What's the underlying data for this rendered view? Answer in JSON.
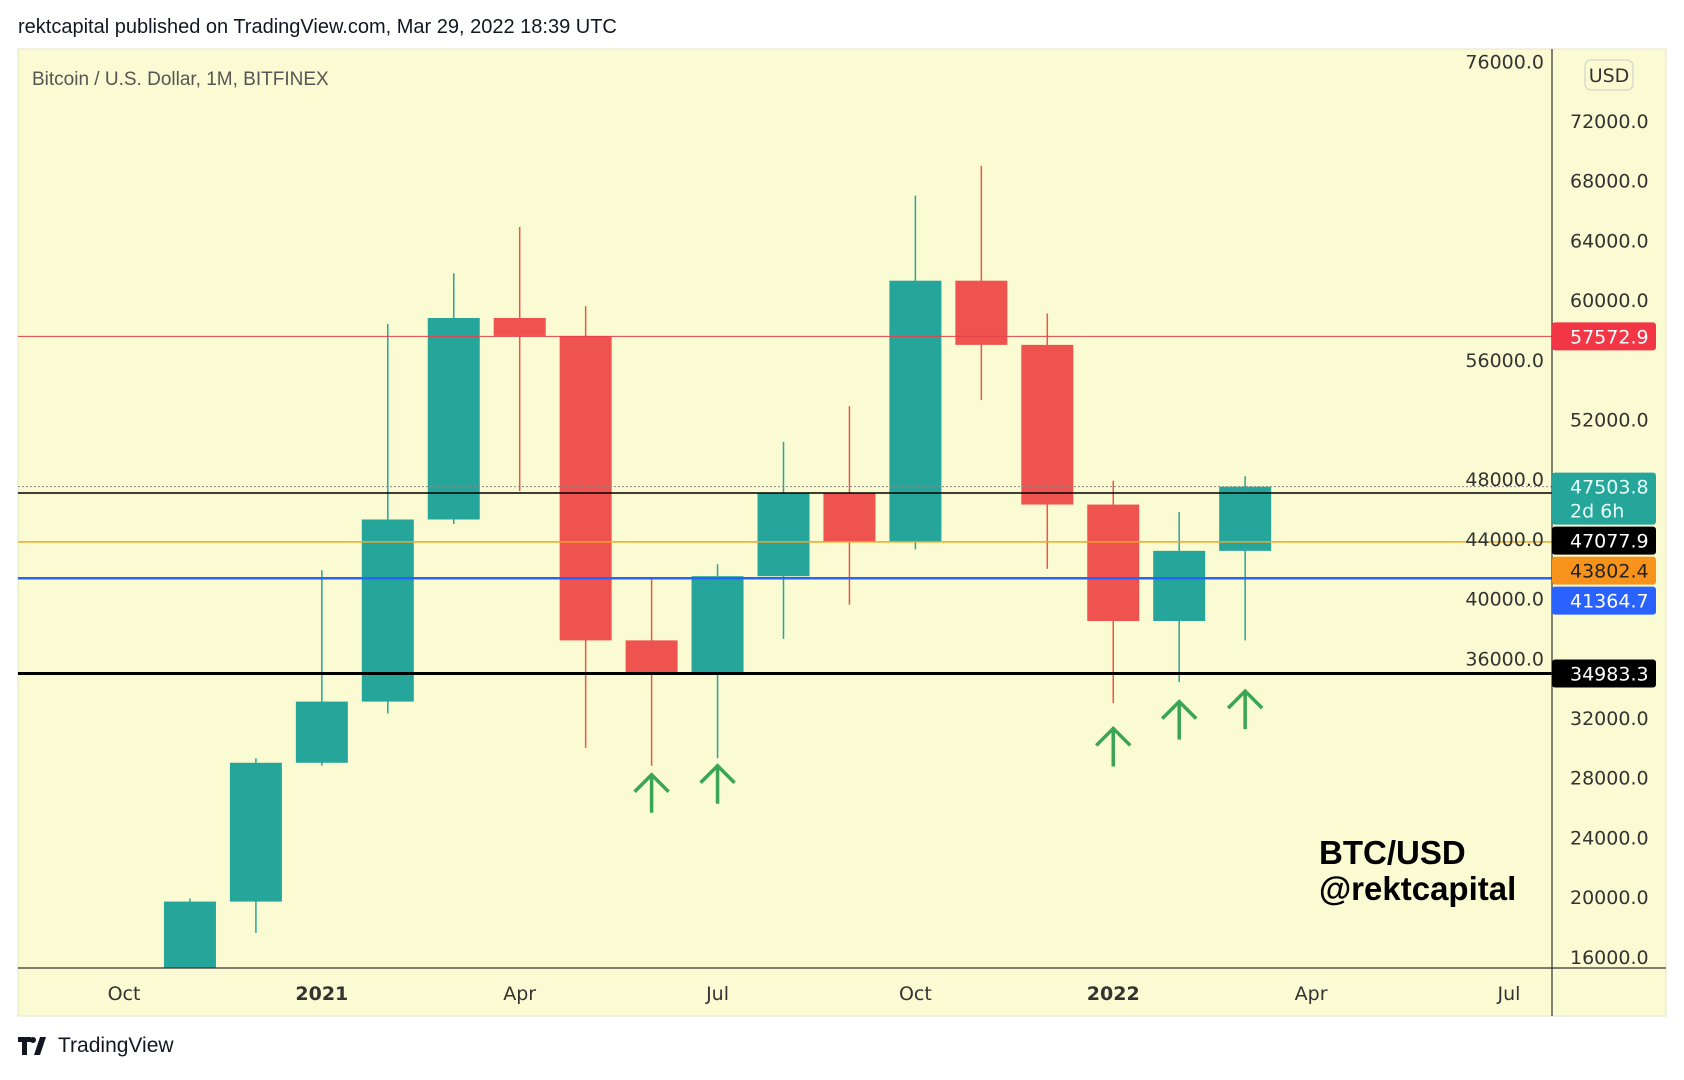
{
  "header": "rektcapital published on TradingView.com, Mar 29, 2022 18:39 UTC",
  "footer_logo": "TradingView",
  "colors": {
    "background": "#fafbd2",
    "up": "#26a69a",
    "down": "#ef5350",
    "arrow": "#3aa655"
  },
  "chart_data": {
    "type": "candlestick",
    "title": "Bitcoin / U.S. Dollar, 1M, BITFINEX",
    "currency_button": "USD",
    "watermark": [
      "BTC/USD",
      "@rektcapital"
    ],
    "ylim": [
      16000,
      76000
    ],
    "y_scale": "linear",
    "y_ticks": [
      "76000.0",
      "72000.0",
      "68000.0",
      "64000.0",
      "60000.0",
      "56000.0",
      "52000.0",
      "48000.0",
      "44000.0",
      "40000.0",
      "36000.0",
      "32000.0",
      "28000.0",
      "24000.0",
      "20000.0",
      "16000.0"
    ],
    "x_ticks": [
      {
        "label": "Oct",
        "date": "2020-10",
        "bold": false
      },
      {
        "label": "2021",
        "date": "2021-01",
        "bold": true
      },
      {
        "label": "Apr",
        "date": "2021-04",
        "bold": false
      },
      {
        "label": "Jul",
        "date": "2021-07",
        "bold": false
      },
      {
        "label": "Oct",
        "date": "2021-10",
        "bold": false
      },
      {
        "label": "2022",
        "date": "2022-01",
        "bold": true
      },
      {
        "label": "Apr",
        "date": "2022-04",
        "bold": false
      },
      {
        "label": "Jul",
        "date": "2022-07",
        "bold": false
      }
    ],
    "candles": [
      {
        "date": "2020-11",
        "o": 13800,
        "h": 19900,
        "l": 13200,
        "c": 19700
      },
      {
        "date": "2020-12",
        "o": 19700,
        "h": 29300,
        "l": 17600,
        "c": 29000
      },
      {
        "date": "2021-01",
        "o": 29000,
        "h": 41900,
        "l": 28800,
        "c": 33100
      },
      {
        "date": "2021-02",
        "o": 33100,
        "h": 58400,
        "l": 32300,
        "c": 45300
      },
      {
        "date": "2021-03",
        "o": 45300,
        "h": 61800,
        "l": 45000,
        "c": 58800
      },
      {
        "date": "2021-04",
        "o": 58800,
        "h": 64900,
        "l": 47200,
        "c": 57600
      },
      {
        "date": "2021-05",
        "o": 57600,
        "h": 59600,
        "l": 30000,
        "c": 37200
      },
      {
        "date": "2021-06",
        "o": 37200,
        "h": 41300,
        "l": 28800,
        "c": 35000
      },
      {
        "date": "2021-07",
        "o": 35000,
        "h": 42300,
        "l": 29300,
        "c": 41500
      },
      {
        "date": "2021-08",
        "o": 41500,
        "h": 50500,
        "l": 37300,
        "c": 47100
      },
      {
        "date": "2021-09",
        "o": 47100,
        "h": 52900,
        "l": 39600,
        "c": 43800
      },
      {
        "date": "2021-10",
        "o": 43800,
        "h": 67000,
        "l": 43300,
        "c": 61300
      },
      {
        "date": "2021-11",
        "o": 61300,
        "h": 69000,
        "l": 53300,
        "c": 57000
      },
      {
        "date": "2021-12",
        "o": 57000,
        "h": 59100,
        "l": 42000,
        "c": 46300
      },
      {
        "date": "2022-01",
        "o": 46300,
        "h": 47900,
        "l": 33000,
        "c": 38500
      },
      {
        "date": "2022-02",
        "o": 38500,
        "h": 45800,
        "l": 34400,
        "c": 43200
      },
      {
        "date": "2022-03",
        "o": 43200,
        "h": 48200,
        "l": 37200,
        "c": 47500
      }
    ],
    "horizontal_lines": [
      {
        "price": 57572.9,
        "label": "57572.9",
        "color": "#e5404a",
        "tag_bg": "#f23645",
        "tag_fg": "#ffffff",
        "width": 1,
        "style": "solid"
      },
      {
        "price": 47503.8,
        "label": "47503.8",
        "sublabel": "2d 6h",
        "color": "#888888",
        "tag_bg": "#26a69a",
        "tag_fg": "#e8fff9",
        "width": 1,
        "style": "dotted"
      },
      {
        "price": 47077.9,
        "label": "47077.9",
        "color": "#000000",
        "tag_bg": "#000000",
        "tag_fg": "#ffffff",
        "width": 1.5,
        "style": "solid"
      },
      {
        "price": 43802.4,
        "label": "43802.4",
        "color": "#f5a623",
        "tag_bg": "#f7931a",
        "tag_fg": "#222222",
        "width": 1.5,
        "style": "solid"
      },
      {
        "price": 41364.7,
        "label": "41364.7",
        "color": "#2962ff",
        "tag_bg": "#2962ff",
        "tag_fg": "#ffffff",
        "width": 2.5,
        "style": "solid"
      },
      {
        "price": 34983.3,
        "label": "34983.3",
        "color": "#000000",
        "tag_bg": "#000000",
        "tag_fg": "#ffffff",
        "width": 3,
        "style": "solid"
      }
    ],
    "annotations": [
      {
        "type": "up-arrow",
        "date": "2021-06",
        "price": 28200
      },
      {
        "type": "up-arrow",
        "date": "2021-07",
        "price": 28800
      },
      {
        "type": "up-arrow",
        "date": "2022-01",
        "price": 31300
      },
      {
        "type": "up-arrow",
        "date": "2022-02",
        "price": 33100
      },
      {
        "type": "up-arrow",
        "date": "2022-03",
        "price": 33800
      }
    ]
  }
}
